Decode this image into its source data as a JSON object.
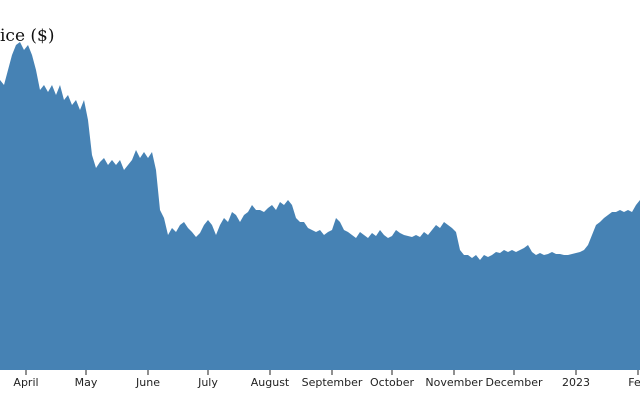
{
  "chart_data": {
    "type": "area",
    "title": "ice ($)",
    "color": "#4682b4",
    "xlim": [
      -13,
      307
    ],
    "ylim": [
      0,
      370
    ],
    "xticks": [
      {
        "value": 0,
        "label": "April"
      },
      {
        "value": 30,
        "label": "May"
      },
      {
        "value": 61,
        "label": "June"
      },
      {
        "value": 91,
        "label": "July"
      },
      {
        "value": 122,
        "label": "August"
      },
      {
        "value": 153,
        "label": "September"
      },
      {
        "value": 183,
        "label": "October"
      },
      {
        "value": 214,
        "label": "November"
      },
      {
        "value": 244,
        "label": "December"
      },
      {
        "value": 275,
        "label": "2023"
      },
      {
        "value": 306,
        "label": "Feb"
      }
    ],
    "x": [
      -13,
      -11,
      -9,
      -7,
      -5,
      -3,
      -1,
      1,
      3,
      5,
      7,
      9,
      11,
      13,
      15,
      17,
      19,
      21,
      23,
      25,
      27,
      29,
      31,
      33,
      35,
      37,
      39,
      41,
      43,
      45,
      47,
      49,
      51,
      53,
      55,
      57,
      59,
      61,
      63,
      65,
      67,
      69,
      71,
      73,
      75,
      77,
      79,
      81,
      83,
      85,
      87,
      89,
      91,
      93,
      95,
      97,
      99,
      101,
      103,
      105,
      107,
      109,
      111,
      113,
      115,
      117,
      119,
      121,
      123,
      125,
      127,
      129,
      131,
      133,
      135,
      137,
      139,
      141,
      143,
      145,
      147,
      149,
      151,
      153,
      155,
      157,
      159,
      161,
      163,
      165,
      167,
      169,
      171,
      173,
      175,
      177,
      179,
      181,
      183,
      185,
      187,
      189,
      191,
      193,
      195,
      197,
      199,
      201,
      203,
      205,
      207,
      209,
      211,
      213,
      215,
      217,
      219,
      221,
      223,
      225,
      227,
      229,
      231,
      233,
      235,
      237,
      239,
      241,
      243,
      245,
      247,
      249,
      251,
      253,
      255,
      257,
      259,
      261,
      263,
      265,
      267,
      269,
      271,
      273,
      275,
      277,
      279,
      281,
      283,
      285,
      287,
      289,
      291,
      293,
      295,
      297,
      299,
      301,
      303,
      305,
      307
    ],
    "values": [
      290,
      285,
      300,
      315,
      325,
      328,
      320,
      325,
      315,
      300,
      280,
      285,
      278,
      285,
      275,
      285,
      270,
      275,
      265,
      270,
      260,
      270,
      250,
      215,
      202,
      208,
      212,
      205,
      210,
      205,
      210,
      200,
      205,
      210,
      220,
      212,
      218,
      212,
      218,
      200,
      160,
      152,
      135,
      142,
      138,
      145,
      148,
      142,
      138,
      133,
      137,
      145,
      150,
      145,
      135,
      145,
      152,
      148,
      158,
      155,
      148,
      155,
      158,
      165,
      160,
      160,
      158,
      162,
      165,
      160,
      168,
      165,
      170,
      165,
      152,
      148,
      148,
      142,
      140,
      138,
      140,
      135,
      138,
      140,
      152,
      148,
      140,
      138,
      135,
      132,
      138,
      135,
      132,
      137,
      134,
      140,
      135,
      132,
      134,
      140,
      137,
      135,
      134,
      133,
      135,
      133,
      138,
      135,
      140,
      145,
      142,
      148,
      145,
      142,
      138,
      120,
      115,
      115,
      112,
      115,
      110,
      115,
      113,
      115,
      118,
      117,
      120,
      118,
      120,
      118,
      120,
      122,
      125,
      118,
      115,
      117,
      115,
      116,
      118,
      116,
      116,
      115,
      115,
      116,
      117,
      118,
      120,
      125,
      135,
      145,
      148,
      152,
      155,
      158,
      158,
      160,
      158,
      160,
      158,
      165,
      170
    ]
  }
}
